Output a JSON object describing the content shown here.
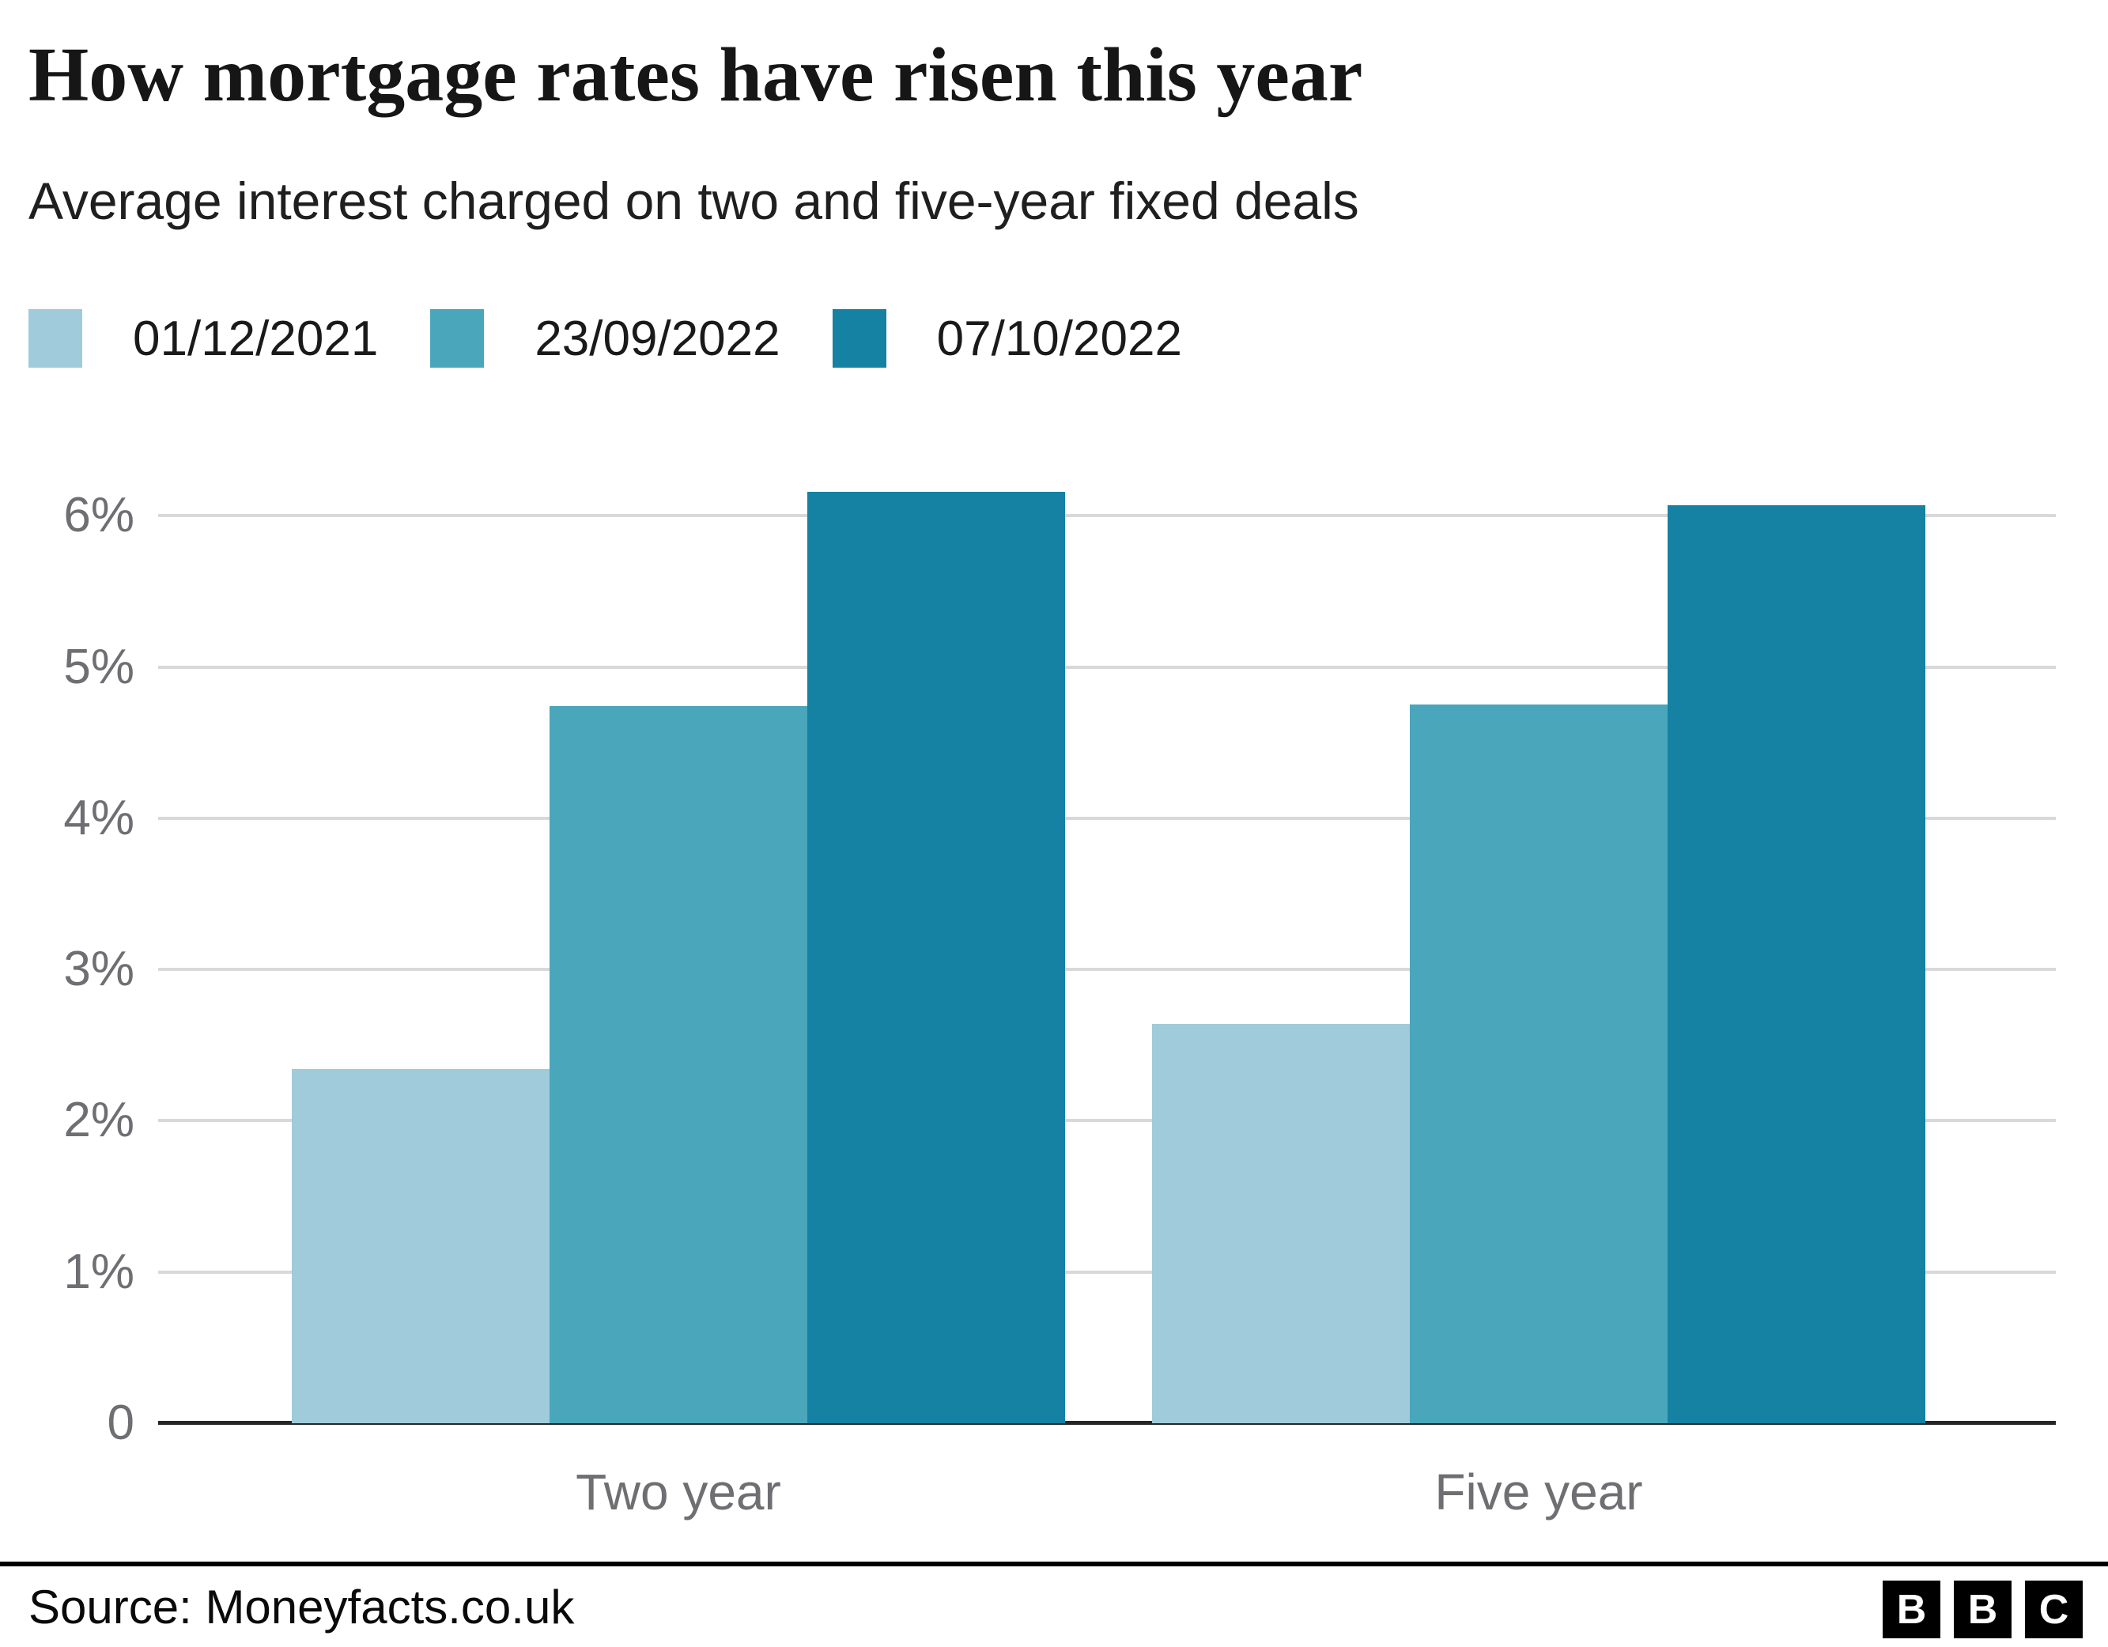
{
  "header": {
    "title": "How mortgage rates have risen this year",
    "subtitle": "Average interest charged on two and five-year fixed deals"
  },
  "chart_data": {
    "type": "bar",
    "categories": [
      "Two year",
      "Five year"
    ],
    "series": [
      {
        "name": "01/12/2021",
        "color": "#9fcbdb",
        "values": [
          2.34,
          2.64
        ]
      },
      {
        "name": "23/09/2022",
        "color": "#4aa6bb",
        "values": [
          4.74,
          4.75
        ]
      },
      {
        "name": "07/10/2022",
        "color": "#1581a3",
        "values": [
          6.16,
          6.07
        ]
      }
    ],
    "title": "How mortgage rates have risen this year",
    "subtitle": "Average interest charged on two and five-year fixed deals",
    "xlabel": "",
    "ylabel": "",
    "ylim": [
      0,
      6.5
    ],
    "yticks": [
      {
        "value": 0,
        "label": "0"
      },
      {
        "value": 1,
        "label": "1%"
      },
      {
        "value": 2,
        "label": "2%"
      },
      {
        "value": 3,
        "label": "3%"
      },
      {
        "value": 4,
        "label": "4%"
      },
      {
        "value": 5,
        "label": "5%"
      },
      {
        "value": 6,
        "label": "6%"
      }
    ],
    "grid": true,
    "legend_position": "top-left"
  },
  "footer": {
    "source": "Source: Moneyfacts.co.uk",
    "logo_letters": [
      "B",
      "B",
      "C"
    ]
  },
  "colors": {
    "grid": "#d9d9d9",
    "axis_line": "#262626",
    "tick_text": "#6e6e73",
    "heading_text": "#161616",
    "background": "#ffffff"
  }
}
